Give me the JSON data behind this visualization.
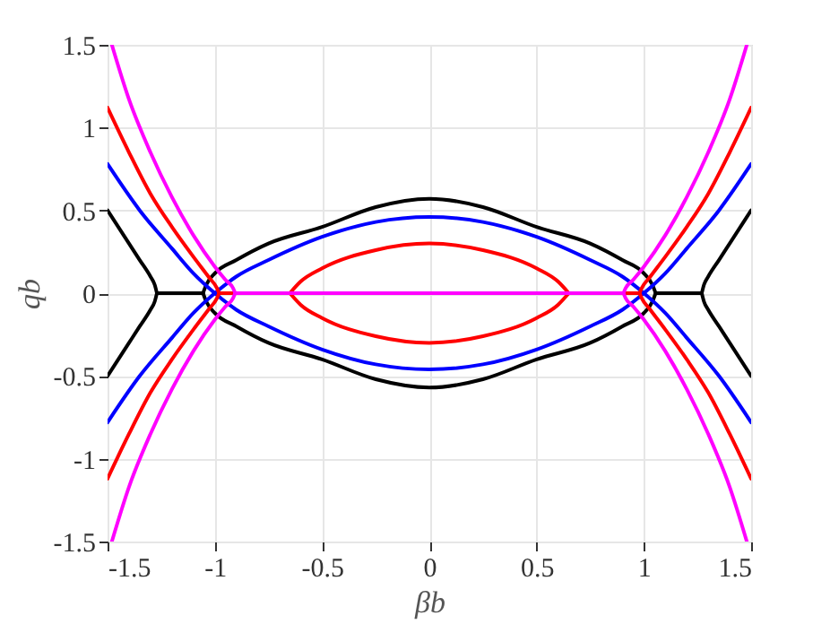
{
  "chart_data": {
    "type": "line",
    "xlabel": "βb",
    "ylabel": "qb",
    "xlim": [
      -1.5,
      1.5
    ],
    "ylim": [
      -1.5,
      1.5
    ],
    "xticks": [
      -1.5,
      -1,
      -0.5,
      0,
      0.5,
      1,
      1.5
    ],
    "yticks": [
      -1.5,
      -1,
      -0.5,
      0,
      0.5,
      1,
      1.5
    ],
    "grid": true,
    "line_style": "solid",
    "series": [
      {
        "color": "#000000",
        "x": [
          -1.5,
          -1.45,
          -1.4,
          -1.35,
          -1.3,
          -1.28,
          -1.27,
          null,
          -1.5,
          -1.45,
          -1.4,
          -1.35,
          -1.3,
          -1.28,
          -1.27,
          null,
          -1.27,
          -1.055,
          null,
          -1.055,
          -1.04,
          -1.0,
          -0.9,
          -0.75,
          -0.5,
          -0.25,
          0,
          0.25,
          0.5,
          0.75,
          0.9,
          1.0,
          1.04,
          1.055,
          null,
          -1.055,
          -1.04,
          -1.0,
          -0.9,
          -0.75,
          -0.5,
          -0.25,
          0,
          0.25,
          0.5,
          0.75,
          0.9,
          1.0,
          1.04,
          1.055,
          null,
          1.055,
          1.27,
          null,
          1.27,
          1.28,
          1.3,
          1.35,
          1.4,
          1.45,
          1.5,
          null,
          1.27,
          1.28,
          1.3,
          1.35,
          1.4,
          1.45,
          1.5
        ],
        "values": [
          0.5,
          0.4,
          0.3,
          0.2,
          0.1,
          0.05,
          0,
          null,
          -0.5,
          -0.4,
          -0.3,
          -0.2,
          -0.1,
          -0.05,
          0,
          null,
          0,
          0,
          null,
          0,
          0.05,
          0.12,
          0.2,
          0.3,
          0.4,
          0.52,
          0.57,
          0.52,
          0.4,
          0.3,
          0.2,
          0.12,
          0.05,
          0,
          null,
          0,
          -0.05,
          -0.12,
          -0.2,
          -0.3,
          -0.4,
          -0.52,
          -0.57,
          -0.52,
          -0.4,
          -0.3,
          -0.2,
          -0.12,
          -0.05,
          0,
          null,
          0,
          0,
          null,
          0,
          0.05,
          0.1,
          0.2,
          0.3,
          0.4,
          0.5,
          null,
          0,
          -0.05,
          -0.1,
          -0.2,
          -0.3,
          -0.4,
          -0.5
        ]
      },
      {
        "color": "#0000ff",
        "x": [
          -1.5,
          -1.35,
          -1.2,
          -1.1,
          -1.0,
          -0.9,
          -0.75,
          -0.5,
          -0.25,
          0,
          0.25,
          0.5,
          0.75,
          0.9,
          1.0,
          1.1,
          1.2,
          1.35,
          1.5,
          null,
          -1.5,
          -1.35,
          -1.2,
          -1.1,
          -1.0,
          -0.9,
          -0.75,
          -0.5,
          -0.25,
          0,
          0.25,
          0.5,
          0.75,
          0.9,
          1.0,
          1.1,
          1.2,
          1.35,
          1.5
        ],
        "values": [
          -0.78,
          -0.5,
          -0.27,
          -0.12,
          0,
          0.1,
          0.2,
          0.34,
          0.43,
          0.46,
          0.43,
          0.34,
          0.2,
          0.1,
          0,
          -0.12,
          -0.27,
          -0.5,
          -0.78,
          null,
          0.78,
          0.5,
          0.27,
          0.12,
          0,
          -0.1,
          -0.2,
          -0.34,
          -0.43,
          -0.46,
          -0.43,
          -0.34,
          -0.2,
          -0.1,
          0,
          0.12,
          0.27,
          0.5,
          0.78
        ]
      },
      {
        "color": "#ff0000",
        "x": [
          -1.5,
          -1.4,
          -1.3,
          -1.2,
          -1.1,
          -1.03,
          -0.99,
          -0.98,
          null,
          -1.5,
          -1.4,
          -1.3,
          -1.2,
          -1.1,
          -1.03,
          -0.99,
          -0.98,
          null,
          -0.98,
          -0.905,
          null,
          -0.65,
          -0.6,
          -0.5,
          -0.25,
          0,
          0.25,
          0.5,
          0.6,
          0.65,
          null,
          -0.65,
          -0.6,
          -0.5,
          -0.25,
          0,
          0.25,
          0.5,
          0.6,
          0.65,
          null,
          0.905,
          0.98,
          null,
          0.98,
          0.99,
          1.03,
          1.1,
          1.2,
          1.3,
          1.4,
          1.5,
          null,
          0.98,
          0.99,
          1.03,
          1.1,
          1.2,
          1.3,
          1.4,
          1.5
        ],
        "values": [
          1.12,
          0.85,
          0.6,
          0.4,
          0.22,
          0.1,
          0.03,
          0,
          null,
          -1.12,
          -0.85,
          -0.6,
          -0.4,
          -0.22,
          -0.1,
          -0.03,
          0,
          null,
          0,
          0,
          null,
          0,
          0.07,
          0.15,
          0.26,
          0.3,
          0.26,
          0.15,
          0.07,
          0,
          null,
          0,
          -0.07,
          -0.15,
          -0.26,
          -0.3,
          -0.26,
          -0.15,
          -0.07,
          0,
          null,
          0,
          0,
          null,
          0,
          0.03,
          0.1,
          0.22,
          0.4,
          0.6,
          0.85,
          1.12,
          null,
          0,
          -0.03,
          -0.1,
          -0.22,
          -0.4,
          -0.6,
          -0.85,
          -1.12
        ]
      },
      {
        "color": "#ff00ff",
        "x": [
          -1.48,
          -1.4,
          -1.3,
          -1.2,
          -1.1,
          -1.0,
          -0.95,
          -0.915,
          -0.905,
          null,
          -1.48,
          -1.4,
          -1.3,
          -1.2,
          -1.1,
          -1.0,
          -0.95,
          -0.915,
          -0.905,
          null,
          -0.905,
          0.905,
          null,
          0.905,
          0.915,
          0.95,
          1.0,
          1.1,
          1.2,
          1.3,
          1.4,
          1.48,
          null,
          0.905,
          0.915,
          0.95,
          1.0,
          1.1,
          1.2,
          1.3,
          1.4,
          1.48
        ],
        "values": [
          1.5,
          1.17,
          0.85,
          0.58,
          0.35,
          0.16,
          0.08,
          0.03,
          0,
          null,
          -1.5,
          -1.17,
          -0.85,
          -0.58,
          -0.35,
          -0.16,
          -0.08,
          -0.03,
          0,
          null,
          0,
          0,
          null,
          0,
          0.03,
          0.08,
          0.16,
          0.35,
          0.58,
          0.85,
          1.17,
          1.5,
          null,
          0,
          -0.03,
          -0.08,
          -0.16,
          -0.35,
          -0.58,
          -0.85,
          -1.17,
          -1.5
        ]
      }
    ]
  }
}
